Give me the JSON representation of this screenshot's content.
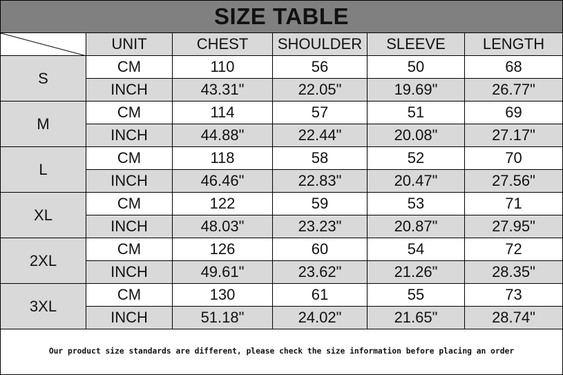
{
  "title": "SIZE TABLE",
  "headers": [
    "UNIT",
    "CHEST",
    "SHOULDER",
    "SLEEVE",
    "LENGTH"
  ],
  "rows": [
    {
      "size": "S",
      "cm": [
        "110",
        "56",
        "50",
        "68"
      ],
      "inch": [
        "43.31\"",
        "22.05\"",
        "19.69\"",
        "26.77\""
      ]
    },
    {
      "size": "M",
      "cm": [
        "114",
        "57",
        "51",
        "69"
      ],
      "inch": [
        "44.88\"",
        "22.44\"",
        "20.08\"",
        "27.17\""
      ]
    },
    {
      "size": "L",
      "cm": [
        "118",
        "58",
        "52",
        "70"
      ],
      "inch": [
        "46.46\"",
        "22.83\"",
        "20.47\"",
        "27.56\""
      ]
    },
    {
      "size": "XL",
      "cm": [
        "122",
        "59",
        "53",
        "71"
      ],
      "inch": [
        "48.03\"",
        "23.23\"",
        "20.87\"",
        "27.95\""
      ]
    },
    {
      "size": "2XL",
      "cm": [
        "126",
        "60",
        "54",
        "72"
      ],
      "inch": [
        "49.61\"",
        "23.62\"",
        "21.26\"",
        "28.35\""
      ]
    },
    {
      "size": "3XL",
      "cm": [
        "130",
        "61",
        "55",
        "73"
      ],
      "inch": [
        "51.18\"",
        "24.02\"",
        "21.65\"",
        "28.74\""
      ]
    }
  ],
  "units": {
    "cm": "CM",
    "inch": "INCH"
  },
  "footer": "Our product size standards are different, please check the size information before placing an order",
  "colors": {
    "title_bg": "#808080",
    "cell_gray": "#d9d9d9"
  }
}
